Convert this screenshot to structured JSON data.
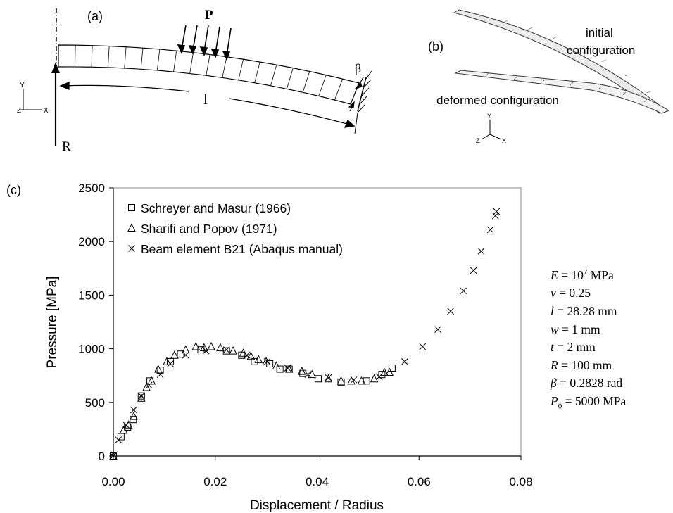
{
  "panels": {
    "a": {
      "label": "(a)",
      "load_label": "P",
      "reaction_label": "R",
      "length_label": "l",
      "angle_label": "β",
      "axes": {
        "y": "Y",
        "z": "Z",
        "x": "X"
      }
    },
    "b": {
      "label": "(b)",
      "initial_label_line1": "initial",
      "initial_label_line2": "configuration",
      "deformed_label": "deformed configuration",
      "axes": {
        "y": "Y",
        "z": "Z",
        "x": "X"
      }
    },
    "c": {
      "label": "(c)"
    }
  },
  "parameters": [
    {
      "sym": "E",
      "sub": "",
      "pre": " = 10",
      "sup": "7",
      "post": " MPa"
    },
    {
      "sym": "ν",
      "sub": "",
      "pre": " = 0.25",
      "sup": "",
      "post": ""
    },
    {
      "sym": "l",
      "sub": "",
      "pre": " = 28.28 mm",
      "sup": "",
      "post": ""
    },
    {
      "sym": "w",
      "sub": "",
      "pre": " = 1 mm",
      "sup": "",
      "post": ""
    },
    {
      "sym": "t",
      "sub": "",
      "pre": " = 2 mm",
      "sup": "",
      "post": ""
    },
    {
      "sym": "R",
      "sub": "",
      "pre": " = 100 mm",
      "sup": "",
      "post": ""
    },
    {
      "sym": "β",
      "sub": "",
      "pre": " = 0.2828 rad",
      "sup": "",
      "post": ""
    },
    {
      "sym": "P",
      "sub": "0",
      "pre": " = 5000 MPa",
      "sup": "",
      "post": ""
    }
  ],
  "chart_data": {
    "type": "scatter",
    "title": "",
    "xlabel": "Displacement / Radius",
    "ylabel": "Pressure [MPa]",
    "xlim": [
      0,
      0.08
    ],
    "ylim": [
      0,
      2500
    ],
    "xticks": [
      "0.00",
      "0.02",
      "0.04",
      "0.06",
      "0.08"
    ],
    "yticks": [
      "0",
      "500",
      "1000",
      "1500",
      "2000",
      "2500"
    ],
    "grid": false,
    "legend_position": "top-left",
    "series": [
      {
        "name": "Schreyer and Masur (1966)",
        "marker": "square",
        "x": [
          0.0,
          0.0015,
          0.0028,
          0.0039,
          0.0055,
          0.0072,
          0.0092,
          0.0112,
          0.0132,
          0.0172,
          0.0222,
          0.0252,
          0.0277,
          0.0307,
          0.0327,
          0.0345,
          0.0372,
          0.0402,
          0.0447,
          0.0497,
          0.0527,
          0.0547
        ],
        "y": [
          0,
          180,
          270,
          340,
          560,
          700,
          800,
          880,
          950,
          990,
          980,
          940,
          880,
          860,
          810,
          810,
          770,
          720,
          690,
          700,
          760,
          820
        ]
      },
      {
        "name": "Sharifi and Popov (1971)",
        "marker": "triangle",
        "x": [
          0.0,
          0.002,
          0.003,
          0.004,
          0.0055,
          0.0065,
          0.0075,
          0.0088,
          0.0105,
          0.012,
          0.0142,
          0.0162,
          0.0178,
          0.0192,
          0.021,
          0.0235,
          0.0255,
          0.027,
          0.0285,
          0.03,
          0.032,
          0.0345,
          0.037,
          0.039,
          0.0422,
          0.0447,
          0.0467,
          0.0487,
          0.0512,
          0.0532,
          0.0542
        ],
        "y": [
          0,
          240,
          290,
          370,
          540,
          640,
          700,
          810,
          880,
          940,
          990,
          1020,
          1010,
          1020,
          1010,
          980,
          960,
          930,
          900,
          880,
          840,
          810,
          790,
          760,
          720,
          700,
          700,
          700,
          720,
          780,
          780
        ]
      },
      {
        "name": "Beam element B21 (Abaqus manual)",
        "marker": "x",
        "x": [
          0.0,
          0.001,
          0.0025,
          0.004,
          0.0055,
          0.007,
          0.0092,
          0.0112,
          0.0142,
          0.0182,
          0.0222,
          0.0262,
          0.0302,
          0.0342,
          0.0382,
          0.0422,
          0.0472,
          0.0522,
          0.0572,
          0.0607,
          0.0637,
          0.0662,
          0.0687,
          0.0707,
          0.0722,
          0.074,
          0.075,
          0.0752
        ],
        "y": [
          0,
          150,
          290,
          430,
          560,
          660,
          760,
          860,
          940,
          980,
          990,
          940,
          880,
          820,
          760,
          730,
          710,
          740,
          880,
          1020,
          1180,
          1350,
          1540,
          1730,
          1910,
          2110,
          2240,
          2280
        ]
      }
    ]
  }
}
